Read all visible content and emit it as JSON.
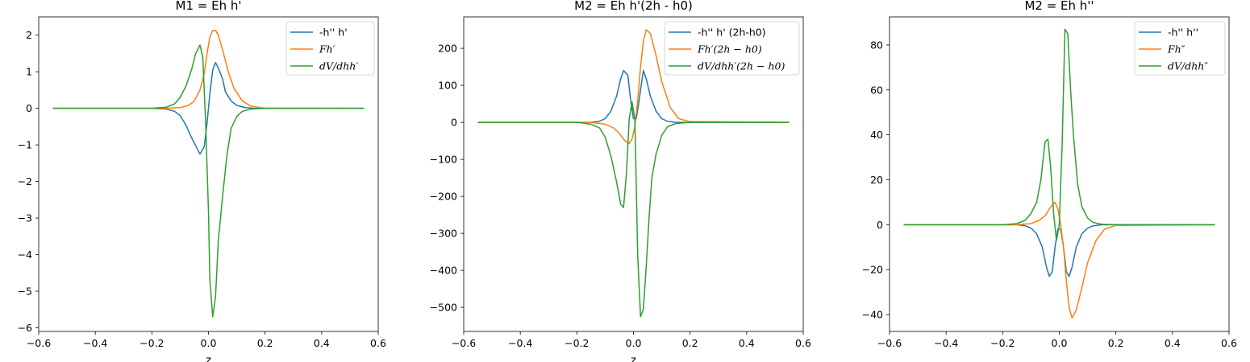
{
  "chart_data": [
    {
      "type": "line",
      "title": "M1 = Eh h'",
      "xlabel": "z",
      "ylabel": "",
      "xlim": [
        -0.6,
        0.6
      ],
      "ylim": [
        -6.1,
        2.5
      ],
      "xticks": [
        -0.6,
        -0.4,
        -0.2,
        0.0,
        0.2,
        0.4,
        0.6
      ],
      "xtick_labels": [
        "−0.6",
        "−0.4",
        "−0.2",
        "0.0",
        "0.2",
        "0.4",
        "0.6"
      ],
      "yticks": [
        -6,
        -5,
        -4,
        -3,
        -2,
        -1,
        0,
        1,
        2
      ],
      "ytick_labels": [
        "−6",
        "−5",
        "−4",
        "−3",
        "−2",
        "−1",
        "0",
        "1",
        "2"
      ],
      "legend_position": "top-right",
      "grid": false,
      "series": [
        {
          "name": "-h'' h'",
          "color": "#1f77b4",
          "math": false,
          "x": [
            -0.55,
            -0.2,
            -0.15,
            -0.12,
            -0.1,
            -0.08,
            -0.06,
            -0.04,
            -0.03,
            -0.015,
            -0.005,
            0.005,
            0.015,
            0.025,
            0.035,
            0.05,
            0.06,
            0.08,
            0.1,
            0.13,
            0.16,
            0.2,
            0.55
          ],
          "y": [
            0,
            0,
            -0.02,
            -0.08,
            -0.2,
            -0.45,
            -0.8,
            -1.1,
            -1.25,
            -1.05,
            -0.4,
            0.4,
            1.05,
            1.25,
            1.1,
            0.8,
            0.45,
            0.2,
            0.08,
            0.02,
            0.005,
            0,
            0
          ]
        },
        {
          "name": "Fh′",
          "color": "#ff7f0e",
          "math": true,
          "x": [
            -0.55,
            -0.15,
            -0.1,
            -0.07,
            -0.05,
            -0.03,
            -0.015,
            -0.005,
            0.005,
            0.015,
            0.025,
            0.035,
            0.05,
            0.07,
            0.09,
            0.12,
            0.15,
            0.2,
            0.55
          ],
          "y": [
            0,
            0,
            0.02,
            0.08,
            0.2,
            0.5,
            0.95,
            1.5,
            1.95,
            2.13,
            2.13,
            2.0,
            1.6,
            1.0,
            0.55,
            0.2,
            0.06,
            0.005,
            0
          ]
        },
        {
          "name": "dV/dhh′",
          "color": "#2ca02c",
          "math": true,
          "x": [
            -0.55,
            -0.2,
            -0.15,
            -0.12,
            -0.1,
            -0.08,
            -0.06,
            -0.045,
            -0.03,
            -0.02,
            -0.01,
            0.0,
            0.005,
            0.015,
            0.025,
            0.035,
            0.05,
            0.065,
            0.08,
            0.1,
            0.12,
            0.15,
            0.2,
            0.55
          ],
          "y": [
            0,
            0,
            0.03,
            0.12,
            0.3,
            0.6,
            1.05,
            1.5,
            1.73,
            1.4,
            -0.4,
            -2.8,
            -4.7,
            -5.7,
            -5.15,
            -3.6,
            -2.4,
            -1.3,
            -0.55,
            -0.22,
            -0.08,
            -0.02,
            0,
            0
          ]
        }
      ]
    },
    {
      "type": "line",
      "title": "M2 = Eh h'(2h - h0)",
      "xlabel": "z",
      "ylabel": "",
      "xlim": [
        -0.6,
        0.6
      ],
      "ylim": [
        -565,
        285
      ],
      "xticks": [
        -0.6,
        -0.4,
        -0.2,
        0.0,
        0.2,
        0.4,
        0.6
      ],
      "xtick_labels": [
        "−0.6",
        "−0.4",
        "−0.2",
        "0.0",
        "0.2",
        "0.4",
        "0.6"
      ],
      "yticks": [
        -500,
        -400,
        -300,
        -200,
        -100,
        0,
        100,
        200
      ],
      "ytick_labels": [
        "−500",
        "−400",
        "−300",
        "−200",
        "−100",
        "0",
        "100",
        "200"
      ],
      "legend_position": "top-right",
      "grid": false,
      "series": [
        {
          "name": "-h'' h' (2h-h0)",
          "color": "#1f77b4",
          "math": false,
          "x": [
            -0.55,
            -0.15,
            -0.12,
            -0.1,
            -0.08,
            -0.06,
            -0.045,
            -0.035,
            -0.02,
            -0.01,
            0.0,
            0.01,
            0.02,
            0.035,
            0.045,
            0.06,
            0.08,
            0.1,
            0.12,
            0.15,
            0.55
          ],
          "y": [
            0,
            0,
            3,
            10,
            30,
            70,
            118,
            140,
            128,
            60,
            10,
            10,
            60,
            140,
            118,
            70,
            30,
            10,
            3,
            0,
            0
          ]
        },
        {
          "name": "Fh′(2h − h0)",
          "color": "#ff7f0e",
          "math": true,
          "x": [
            -0.55,
            -0.15,
            -0.1,
            -0.07,
            -0.05,
            -0.03,
            -0.015,
            -0.005,
            0.005,
            0.015,
            0.025,
            0.035,
            0.045,
            0.06,
            0.08,
            0.1,
            0.13,
            0.16,
            0.2,
            0.55
          ],
          "y": [
            0,
            0,
            -5,
            -15,
            -30,
            -50,
            -57,
            -45,
            -10,
            60,
            150,
            220,
            250,
            240,
            180,
            110,
            40,
            10,
            2,
            0
          ]
        },
        {
          "name": "dV/dhh′(2h − h0)",
          "color": "#2ca02c",
          "math": true,
          "x": [
            -0.55,
            -0.2,
            -0.15,
            -0.12,
            -0.1,
            -0.08,
            -0.06,
            -0.045,
            -0.035,
            -0.025,
            -0.015,
            -0.005,
            0.005,
            0.015,
            0.025,
            0.035,
            0.045,
            0.055,
            0.065,
            0.08,
            0.1,
            0.12,
            0.15,
            0.2,
            0.55
          ],
          "y": [
            0,
            0,
            -5,
            -15,
            -40,
            -90,
            -160,
            -222,
            -230,
            -140,
            10,
            55,
            10,
            -360,
            -525,
            -505,
            -390,
            -260,
            -150,
            -85,
            -35,
            -12,
            -3,
            0,
            0
          ]
        }
      ]
    },
    {
      "type": "line",
      "title": "M2 = Eh h''",
      "xlabel": "",
      "ylabel": "",
      "xlim": [
        -0.6,
        0.6
      ],
      "ylim": [
        -47.5,
        92.5
      ],
      "xticks": [
        -0.6,
        -0.4,
        -0.2,
        0.0,
        0.2,
        0.4,
        0.6
      ],
      "xtick_labels": [
        "−0.6",
        "−0.4",
        "−0.2",
        "0.0",
        "0.2",
        "0.4",
        "0.6"
      ],
      "yticks": [
        -40,
        -20,
        0,
        20,
        40,
        60,
        80
      ],
      "ytick_labels": [
        "−40",
        "−20",
        "0",
        "20",
        "40",
        "60",
        "80"
      ],
      "legend_position": "top-right",
      "grid": false,
      "series": [
        {
          "name": "-h'' h''",
          "color": "#1f77b4",
          "math": false,
          "x": [
            -0.55,
            -0.15,
            -0.12,
            -0.1,
            -0.08,
            -0.06,
            -0.045,
            -0.035,
            -0.025,
            -0.015,
            -0.005,
            0.005,
            0.015,
            0.025,
            0.035,
            0.045,
            0.06,
            0.08,
            0.1,
            0.12,
            0.15,
            0.55
          ],
          "y": [
            0,
            0,
            -0.5,
            -1.5,
            -4,
            -10,
            -19,
            -23,
            -21,
            -10,
            -2,
            -2,
            -10,
            -21,
            -23,
            -19,
            -10,
            -4,
            -1.5,
            -0.5,
            0,
            0
          ]
        },
        {
          "name": "Fh″",
          "color": "#ff7f0e",
          "math": true,
          "x": [
            -0.55,
            -0.15,
            -0.1,
            -0.07,
            -0.05,
            -0.03,
            -0.015,
            -0.005,
            0.005,
            0.015,
            0.025,
            0.035,
            0.045,
            0.06,
            0.08,
            0.1,
            0.13,
            0.16,
            0.2,
            0.55
          ],
          "y": [
            0,
            0,
            0.5,
            2,
            4,
            8,
            10,
            7,
            0,
            -10,
            -25,
            -37,
            -41.5,
            -38,
            -28,
            -17,
            -7,
            -2,
            -0.3,
            0
          ]
        },
        {
          "name": "dV/dhh″",
          "color": "#2ca02c",
          "math": true,
          "x": [
            -0.55,
            -0.2,
            -0.15,
            -0.12,
            -0.1,
            -0.08,
            -0.065,
            -0.05,
            -0.04,
            -0.03,
            -0.02,
            -0.01,
            0.0,
            0.01,
            0.02,
            0.03,
            0.04,
            0.05,
            0.065,
            0.08,
            0.1,
            0.12,
            0.15,
            0.2,
            0.55
          ],
          "y": [
            0,
            0,
            0.5,
            2,
            5,
            10,
            20,
            37,
            38,
            25,
            5,
            -7,
            0,
            35,
            87,
            85,
            60,
            40,
            18,
            8,
            3,
            1,
            0.2,
            0,
            0
          ]
        }
      ]
    }
  ]
}
